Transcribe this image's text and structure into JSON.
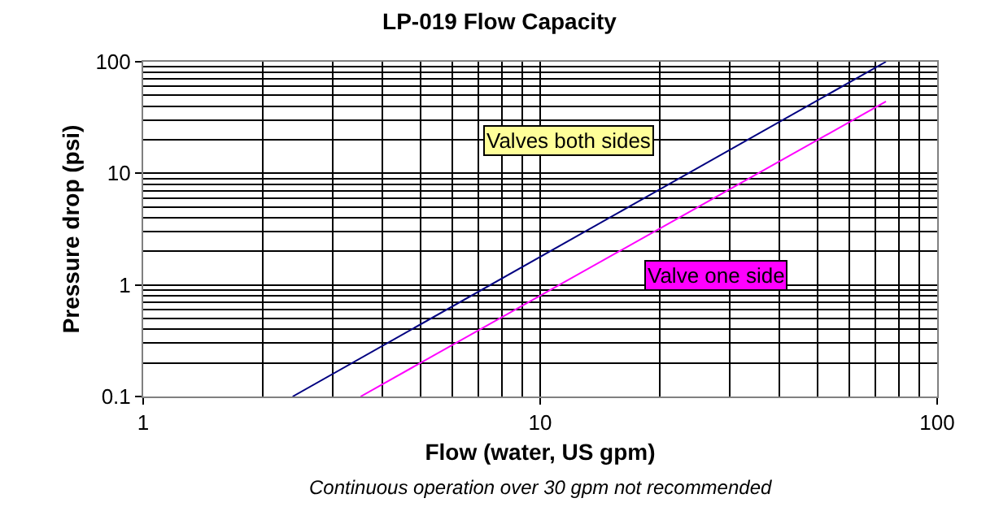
{
  "chart_data": {
    "type": "line",
    "title": "LP-019 Flow Capacity",
    "xlabel": "Flow (water, US gpm)",
    "ylabel": "Pressure drop (psi)",
    "annotations": [
      "Continuous operation over 30 gpm not recommended"
    ],
    "log": "xy",
    "grid": true,
    "legend": false,
    "marker": "none",
    "line_style": "solid",
    "xlim": [
      1,
      100
    ],
    "xticks": [
      1,
      10,
      100
    ],
    "ylim": [
      0.1,
      100
    ],
    "yticks": [
      0.1,
      1,
      10,
      100
    ],
    "series": [
      {
        "name": "Valves both sides",
        "color": "#000080",
        "x": [
          2.38,
          74.3
        ],
        "values": [
          0.1,
          100
        ]
      },
      {
        "name": "Valve one side",
        "color": "#ff00ff",
        "x": [
          3.53,
          74.3
        ],
        "values": [
          0.1,
          44
        ]
      }
    ]
  }
}
